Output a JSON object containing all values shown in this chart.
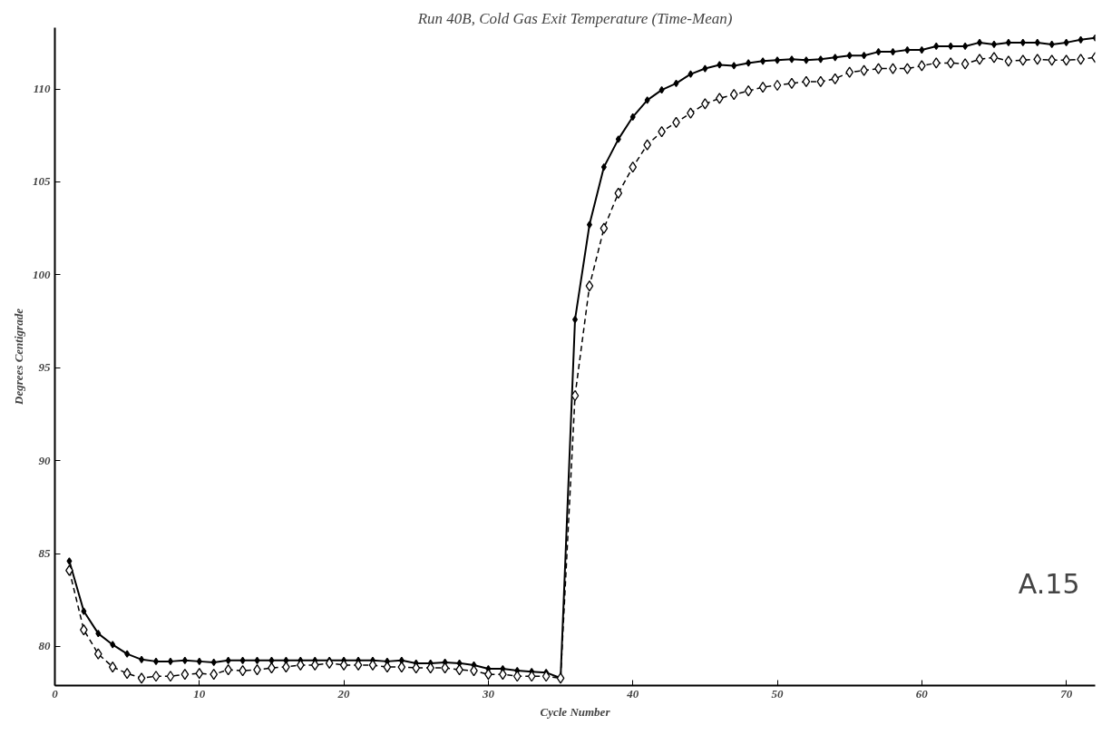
{
  "chart_data": {
    "type": "line",
    "title": "Run 40B, Cold Gas Exit Temperature (Time-Mean)",
    "xlabel": "Cycle Number",
    "ylabel": "Degrees Centigrade",
    "x": [
      1,
      2,
      3,
      4,
      5,
      6,
      7,
      8,
      9,
      10,
      11,
      12,
      13,
      14,
      15,
      16,
      17,
      18,
      19,
      20,
      21,
      22,
      23,
      24,
      25,
      26,
      27,
      28,
      29,
      30,
      31,
      32,
      33,
      34,
      35,
      36,
      37,
      38,
      39,
      40,
      41,
      42,
      43,
      44,
      45,
      46,
      47,
      48,
      49,
      50,
      51,
      52,
      53,
      54,
      55,
      56,
      57,
      58,
      59,
      60,
      61,
      62,
      63,
      64,
      65,
      66,
      67,
      68,
      69,
      70,
      71,
      72
    ],
    "series": [
      {
        "color": "#000000",
        "line_style": "solid",
        "values": [
          84.6,
          81.9,
          80.7,
          80.1,
          79.6,
          79.3,
          79.2,
          79.2,
          79.25,
          79.2,
          79.15,
          79.25,
          79.25,
          79.25,
          79.25,
          79.25,
          79.25,
          79.25,
          79.25,
          79.25,
          79.25,
          79.25,
          79.2,
          79.25,
          79.1,
          79.1,
          79.15,
          79.1,
          79.0,
          78.8,
          78.8,
          78.7,
          78.65,
          78.6,
          78.3,
          97.6,
          102.7,
          105.8,
          107.3,
          108.5,
          109.4,
          109.95,
          110.3,
          110.8,
          111.1,
          111.3,
          111.25,
          111.4,
          111.5,
          111.55,
          111.6,
          111.55,
          111.6,
          111.7,
          111.8,
          111.8,
          112.0,
          112.0,
          112.1,
          112.1,
          112.3,
          112.3,
          112.3,
          112.5,
          112.4,
          112.5,
          112.5,
          112.5,
          112.4,
          112.5,
          112.65,
          112.75
        ]
      },
      {
        "color": "#000000",
        "line_style": "dashed",
        "values": [
          84.1,
          80.9,
          79.6,
          78.9,
          78.55,
          78.3,
          78.4,
          78.4,
          78.5,
          78.55,
          78.5,
          78.75,
          78.7,
          78.75,
          78.85,
          78.9,
          79.0,
          79.0,
          79.1,
          79.0,
          79.0,
          79.0,
          78.9,
          78.9,
          78.85,
          78.85,
          78.85,
          78.75,
          78.7,
          78.5,
          78.5,
          78.4,
          78.4,
          78.4,
          78.3,
          93.5,
          99.4,
          102.5,
          104.4,
          105.8,
          107.0,
          107.7,
          108.2,
          108.7,
          109.2,
          109.5,
          109.7,
          109.9,
          110.1,
          110.2,
          110.3,
          110.4,
          110.4,
          110.55,
          110.9,
          111.0,
          111.1,
          111.1,
          111.1,
          111.25,
          111.4,
          111.4,
          111.35,
          111.6,
          111.7,
          111.5,
          111.55,
          111.6,
          111.55,
          111.55,
          111.6,
          111.7
        ]
      }
    ],
    "marker": "diamond",
    "xlim": [
      0,
      72
    ],
    "xticks": [
      0,
      10,
      20,
      30,
      40,
      50,
      60,
      70
    ],
    "ylim": [
      77.9,
      113.3
    ],
    "yticks": [
      80,
      85,
      90,
      95,
      100,
      105,
      110
    ],
    "grid": false,
    "annotations": [
      "A.15"
    ]
  }
}
